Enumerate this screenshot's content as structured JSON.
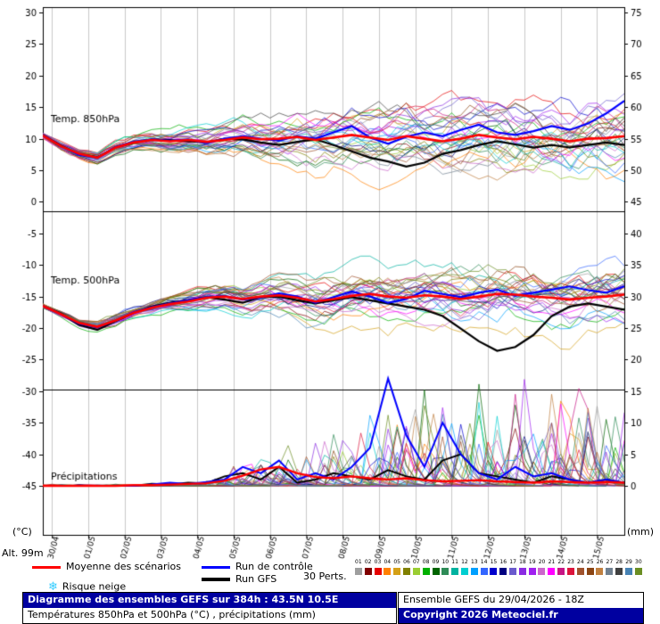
{
  "chart_data": {
    "type": "line",
    "title": "Diagramme des ensembles GEFS sur 384h : 43.5N 10.5E",
    "x_labels": [
      "30/04",
      "01/05",
      "02/05",
      "03/05",
      "04/05",
      "05/05",
      "06/05",
      "07/05",
      "08/05",
      "09/05",
      "10/05",
      "11/05",
      "12/05",
      "13/05",
      "14/05",
      "15/05"
    ],
    "time_step_hours": 12,
    "total_hours": 384,
    "left_axis": {
      "unit": "(°C)",
      "ticks": [
        30,
        25,
        20,
        15,
        10,
        5,
        0,
        -5,
        -10,
        -15,
        -20,
        -25,
        -30,
        -35,
        -40,
        -45
      ]
    },
    "right_axis": {
      "unit": "(mm)",
      "ticks": [
        75,
        70,
        65,
        60,
        55,
        50,
        45,
        40,
        35,
        30,
        25,
        20,
        15,
        10,
        5,
        0
      ]
    },
    "mean_color": "#ff0000",
    "control_color": "#0000ff",
    "gfs_color": "#000000",
    "grid_color": "#c9c9c9",
    "ensemble_members": 30,
    "member_colors": [
      "#9e9e9e",
      "#7f0000",
      "#e60000",
      "#ff8000",
      "#d4a017",
      "#808000",
      "#9acd32",
      "#00b000",
      "#006400",
      "#2e8b57",
      "#00b2a0",
      "#00ced1",
      "#00a0ff",
      "#3366ff",
      "#0000cd",
      "#000080",
      "#6a5acd",
      "#8a2be2",
      "#a020f0",
      "#cc66cc",
      "#ff00ff",
      "#c71585",
      "#dc143c",
      "#a0522d",
      "#8b4513",
      "#c08040",
      "#708090",
      "#404040",
      "#4682b4",
      "#6b8e23"
    ],
    "panels": [
      {
        "name": "Temp. 850hPa",
        "unit": "°C",
        "mean": [
          10.5,
          8.8,
          7.6,
          7.0,
          8.6,
          9.4,
          9.8,
          9.6,
          9.8,
          9.5,
          9.8,
          10.2,
          9.9,
          10.0,
          10.3,
          9.8,
          10.2,
          10.6,
          10.2,
          9.8,
          10.4,
          10.0,
          9.6,
          10.0,
          10.6,
          10.2,
          9.9,
          10.3,
          10.0,
          9.6,
          10.0,
          10.1,
          10.4
        ],
        "control": [
          10.5,
          8.8,
          7.4,
          7.0,
          8.7,
          9.5,
          9.9,
          9.7,
          9.9,
          9.3,
          10.0,
          10.4,
          10.0,
          9.7,
          10.4,
          10.0,
          11.0,
          12.0,
          10.2,
          9.2,
          10.3,
          11.0,
          10.4,
          11.4,
          12.2,
          11.0,
          10.6,
          11.2,
          12.0,
          11.4,
          12.4,
          14.0,
          16.0
        ],
        "gfs": [
          10.5,
          8.9,
          7.5,
          7.1,
          8.6,
          9.4,
          9.9,
          9.8,
          9.6,
          9.4,
          10.0,
          9.9,
          9.4,
          9.0,
          9.5,
          9.9,
          9.0,
          8.0,
          7.0,
          6.4,
          5.6,
          6.2,
          7.6,
          8.2,
          9.0,
          9.6,
          9.1,
          8.6,
          9.0,
          8.6,
          9.0,
          9.4,
          9.0
        ],
        "spread": [
          0.4,
          0.5,
          0.6,
          0.7,
          0.8,
          0.9,
          1.0,
          1.1,
          1.3,
          1.5,
          1.7,
          1.9,
          2.1,
          2.3,
          2.5,
          2.6,
          2.8,
          2.9,
          3.0,
          3.1,
          3.2,
          3.3,
          3.4,
          3.5,
          3.5,
          3.6,
          3.6,
          3.7,
          3.7,
          3.8,
          3.8,
          3.9,
          4.0
        ]
      },
      {
        "name": "Temp. 500hPa",
        "unit": "°C",
        "mean": [
          -16.5,
          -17.8,
          -19.2,
          -19.8,
          -18.8,
          -17.6,
          -16.8,
          -16.2,
          -15.8,
          -15.2,
          -15.0,
          -15.4,
          -15.0,
          -14.8,
          -15.2,
          -15.8,
          -15.4,
          -14.9,
          -14.6,
          -15.0,
          -15.2,
          -14.8,
          -15.0,
          -15.4,
          -15.0,
          -14.6,
          -14.7,
          -15.0,
          -15.2,
          -15.5,
          -15.2,
          -15.0,
          -14.7
        ],
        "control": [
          -16.5,
          -17.8,
          -19.3,
          -19.9,
          -18.8,
          -17.5,
          -16.7,
          -16.1,
          -15.6,
          -15.1,
          -14.9,
          -15.5,
          -15.1,
          -14.5,
          -15.0,
          -16.0,
          -15.1,
          -14.2,
          -15.0,
          -16.0,
          -15.4,
          -14.1,
          -14.6,
          -15.1,
          -14.4,
          -13.9,
          -14.9,
          -14.4,
          -13.9,
          -13.4,
          -14.0,
          -14.4,
          -13.4
        ],
        "gfs": [
          -16.5,
          -17.7,
          -19.5,
          -20.3,
          -18.9,
          -17.6,
          -16.6,
          -16.0,
          -15.6,
          -15.1,
          -15.5,
          -16.0,
          -15.1,
          -15.0,
          -15.6,
          -16.1,
          -15.6,
          -15.1,
          -15.6,
          -16.1,
          -16.6,
          -17.1,
          -18.1,
          -20.1,
          -22.1,
          -23.6,
          -23.0,
          -21.1,
          -18.1,
          -16.6,
          -16.1,
          -16.6,
          -17.1
        ],
        "spread": [
          0.3,
          0.4,
          0.5,
          0.6,
          0.7,
          0.8,
          0.9,
          1.0,
          1.1,
          1.3,
          1.5,
          1.7,
          1.9,
          2.0,
          2.2,
          2.3,
          2.5,
          2.6,
          2.7,
          2.8,
          2.9,
          3.0,
          3.0,
          3.1,
          3.1,
          3.2,
          3.2,
          3.3,
          3.3,
          3.4,
          3.4,
          3.5,
          3.5
        ]
      },
      {
        "name": "Précipitations",
        "unit": "mm",
        "mean": [
          0,
          0,
          0,
          0,
          0,
          0.1,
          0.1,
          0.2,
          0.3,
          0.4,
          0.8,
          1.6,
          2.6,
          3.0,
          2.0,
          1.4,
          1.2,
          1.5,
          1.2,
          1.0,
          1.2,
          0.9,
          0.7,
          0.8,
          0.9,
          0.7,
          0.6,
          0.5,
          0.7,
          0.6,
          0.5,
          0.6,
          0.5
        ],
        "control": [
          0,
          0,
          0,
          0,
          0,
          0,
          0.2,
          0.5,
          0.3,
          0.6,
          1.0,
          3.0,
          2.0,
          4.0,
          1.0,
          2.0,
          1.0,
          3.0,
          6.0,
          17.0,
          8.0,
          3.0,
          10.0,
          5.0,
          2.0,
          1.0,
          3.0,
          1.5,
          2.0,
          1.0,
          0.5,
          1.0,
          0.5
        ],
        "gfs": [
          0,
          0,
          0,
          0,
          0,
          0,
          0.3,
          0.2,
          0.5,
          0.4,
          1.5,
          2.0,
          1.0,
          3.0,
          0.5,
          1.0,
          2.0,
          1.5,
          1.0,
          2.5,
          1.5,
          1.0,
          4.0,
          5.0,
          2.0,
          1.5,
          1.0,
          0.5,
          1.5,
          1.0,
          0.5,
          1.0,
          0.5
        ]
      }
    ]
  },
  "axis_labels": {
    "left_unit": "(°C)",
    "right_unit": "(mm)",
    "altitude": "Alt. 99m"
  },
  "legend": {
    "mean_label": "Moyenne des scénarios",
    "control_label": "Run de contrôle",
    "gfs_label": "Run GFS",
    "perts_label": "30 Perts.",
    "snow_label": "Risque neige",
    "snow_icon": "❄",
    "member_numbers": [
      "01",
      "02",
      "03",
      "04",
      "05",
      "06",
      "07",
      "08",
      "09",
      "10",
      "11",
      "12",
      "13",
      "14",
      "15",
      "16",
      "17",
      "18",
      "19",
      "20",
      "21",
      "22",
      "23",
      "24",
      "25",
      "26",
      "27",
      "28",
      "29",
      "30"
    ]
  },
  "footer": {
    "title": "Diagramme des ensembles GEFS sur 384h : 43.5N 10.5E",
    "subtitle": "Températures 850hPa et 500hPa (°C) , précipitations (mm)",
    "run_info": "Ensemble GEFS du 29/04/2026 - 18Z",
    "copyright": "Copyright 2026 Meteociel.fr"
  }
}
